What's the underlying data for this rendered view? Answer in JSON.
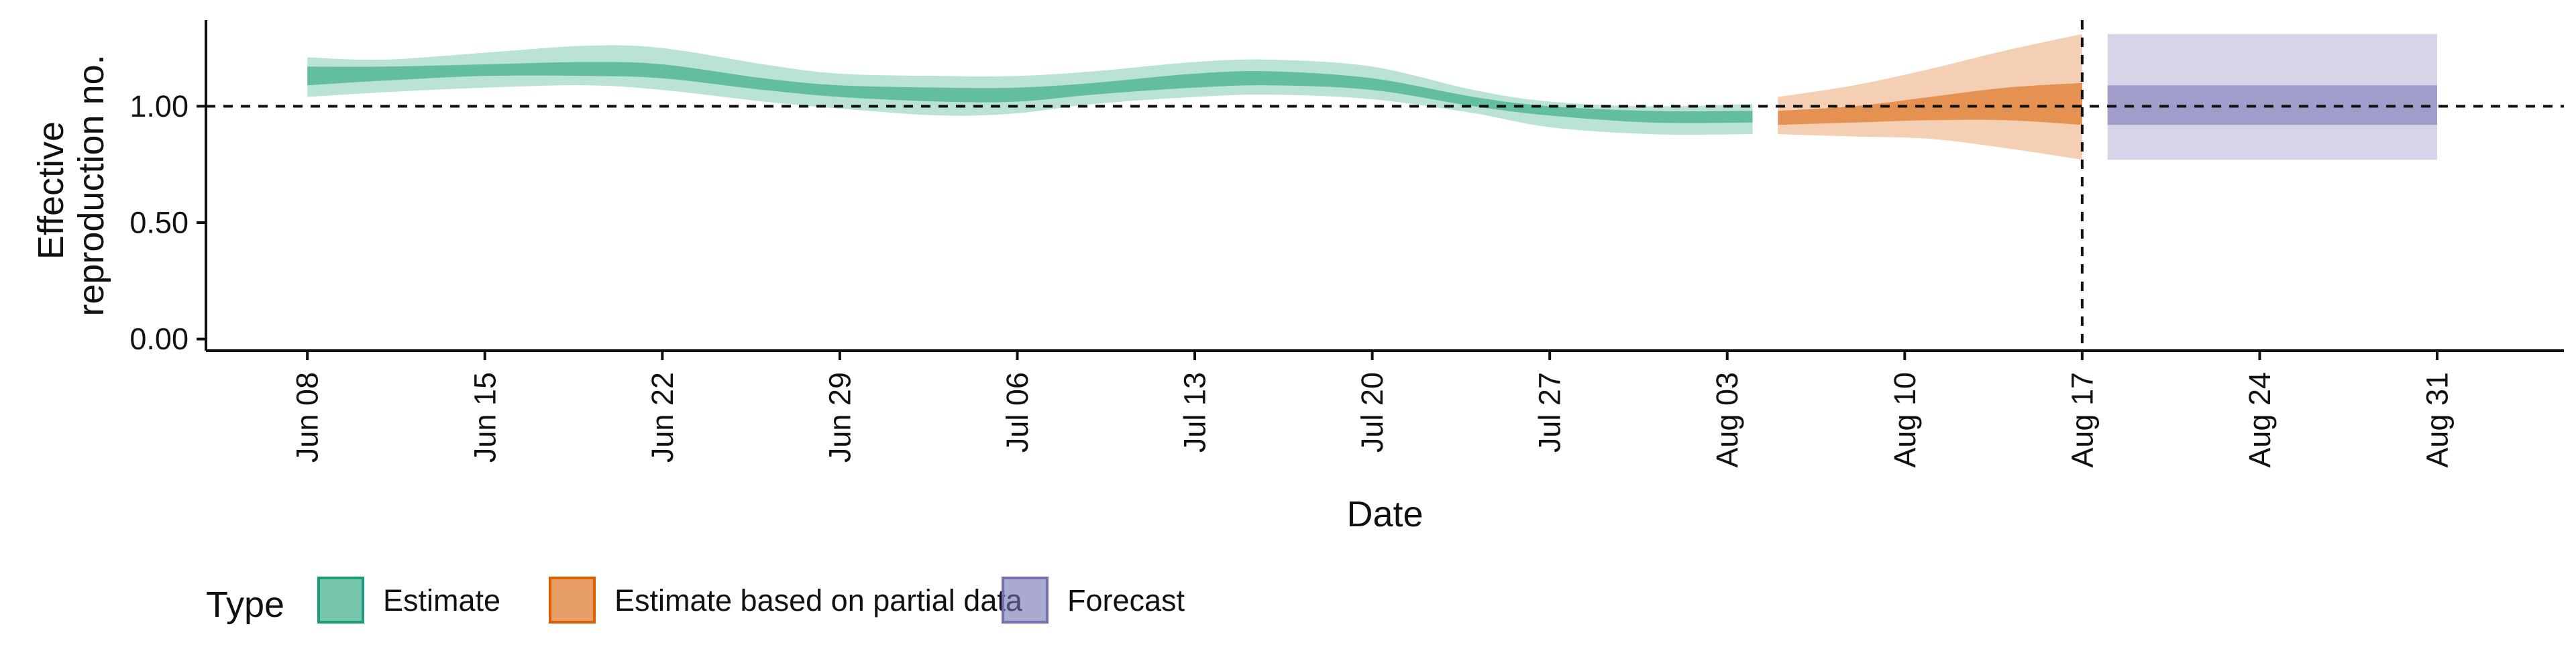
{
  "chart_data": {
    "type": "area",
    "title": "",
    "xlabel": "Date",
    "ylabel_lines": [
      "Effective",
      "reproduction no."
    ],
    "x_ticks": [
      "2020-06-08",
      "2020-06-15",
      "2020-06-22",
      "2020-06-29",
      "2020-07-06",
      "2020-07-13",
      "2020-07-20",
      "2020-07-27",
      "2020-08-03",
      "2020-08-10",
      "2020-08-17",
      "2020-08-24",
      "2020-08-31"
    ],
    "x_tick_labels": [
      "Jun 08",
      "Jun 15",
      "Jun 22",
      "Jun 29",
      "Jul 06",
      "Jul 13",
      "Jul 20",
      "Jul 27",
      "Aug 03",
      "Aug 10",
      "Aug 17",
      "Aug 24",
      "Aug 31"
    ],
    "xlim": [
      "2020-06-04",
      "2020-09-05"
    ],
    "y_ticks": [
      0,
      0.5,
      1,
      1.5
    ],
    "y_tick_labels": [
      "0.00",
      "0.50",
      "1.00",
      ""
    ],
    "ylim": [
      -0.05,
      1.37
    ],
    "reference_hline": 1.0,
    "reference_vline": "2020-08-17",
    "grid": false,
    "legend_title": "Type",
    "legend_position": "bottom",
    "series": [
      {
        "name": "Estimate",
        "color": "#1b9e77",
        "points": [
          {
            "x": "2020-06-08",
            "lo90": 1.04,
            "hi90": 1.21,
            "lo50": 1.09,
            "hi50": 1.17
          },
          {
            "x": "2020-06-11",
            "lo90": 1.06,
            "hi90": 1.2,
            "lo50": 1.11,
            "hi50": 1.17
          },
          {
            "x": "2020-06-15",
            "lo90": 1.08,
            "hi90": 1.23,
            "lo50": 1.13,
            "hi50": 1.18
          },
          {
            "x": "2020-06-19",
            "lo90": 1.09,
            "hi90": 1.26,
            "lo50": 1.13,
            "hi50": 1.19
          },
          {
            "x": "2020-06-22",
            "lo90": 1.07,
            "hi90": 1.25,
            "lo50": 1.12,
            "hi50": 1.18
          },
          {
            "x": "2020-06-26",
            "lo90": 1.02,
            "hi90": 1.18,
            "lo50": 1.07,
            "hi50": 1.12
          },
          {
            "x": "2020-06-29",
            "lo90": 0.99,
            "hi90": 1.14,
            "lo50": 1.04,
            "hi50": 1.09
          },
          {
            "x": "2020-07-03",
            "lo90": 0.96,
            "hi90": 1.13,
            "lo50": 1.02,
            "hi50": 1.08
          },
          {
            "x": "2020-07-06",
            "lo90": 0.97,
            "hi90": 1.13,
            "lo50": 1.02,
            "hi50": 1.08
          },
          {
            "x": "2020-07-09",
            "lo90": 1.01,
            "hi90": 1.15,
            "lo50": 1.05,
            "hi50": 1.1
          },
          {
            "x": "2020-07-13",
            "lo90": 1.04,
            "hi90": 1.19,
            "lo50": 1.08,
            "hi50": 1.14
          },
          {
            "x": "2020-07-16",
            "lo90": 1.05,
            "hi90": 1.2,
            "lo50": 1.09,
            "hi50": 1.15
          },
          {
            "x": "2020-07-20",
            "lo90": 1.03,
            "hi90": 1.17,
            "lo50": 1.07,
            "hi50": 1.12
          },
          {
            "x": "2020-07-24",
            "lo90": 0.97,
            "hi90": 1.07,
            "lo50": 1.0,
            "hi50": 1.04
          },
          {
            "x": "2020-07-27",
            "lo90": 0.91,
            "hi90": 1.02,
            "lo50": 0.96,
            "hi50": 1.0
          },
          {
            "x": "2020-07-31",
            "lo90": 0.88,
            "hi90": 1.0,
            "lo50": 0.93,
            "hi50": 0.98
          },
          {
            "x": "2020-08-04",
            "lo90": 0.88,
            "hi90": 1.01,
            "lo50": 0.93,
            "hi50": 0.98
          }
        ]
      },
      {
        "name": "Estimate based on partial data",
        "color": "#d95f02",
        "points": [
          {
            "x": "2020-08-05",
            "lo90": 0.88,
            "hi90": 1.04,
            "lo50": 0.92,
            "hi50": 0.98
          },
          {
            "x": "2020-08-08",
            "lo90": 0.87,
            "hi90": 1.09,
            "lo50": 0.93,
            "hi50": 1.0
          },
          {
            "x": "2020-08-11",
            "lo90": 0.86,
            "hi90": 1.16,
            "lo50": 0.94,
            "hi50": 1.04
          },
          {
            "x": "2020-08-14",
            "lo90": 0.82,
            "hi90": 1.24,
            "lo50": 0.94,
            "hi50": 1.08
          },
          {
            "x": "2020-08-17",
            "lo90": 0.77,
            "hi90": 1.31,
            "lo50": 0.92,
            "hi50": 1.1
          }
        ]
      },
      {
        "name": "Forecast",
        "color": "#7570b3",
        "points": [
          {
            "x": "2020-08-18",
            "lo90": 0.77,
            "hi90": 1.31,
            "lo50": 0.92,
            "hi50": 1.09
          },
          {
            "x": "2020-08-31",
            "lo90": 0.77,
            "hi90": 1.31,
            "lo50": 0.92,
            "hi50": 1.09
          }
        ]
      }
    ]
  }
}
